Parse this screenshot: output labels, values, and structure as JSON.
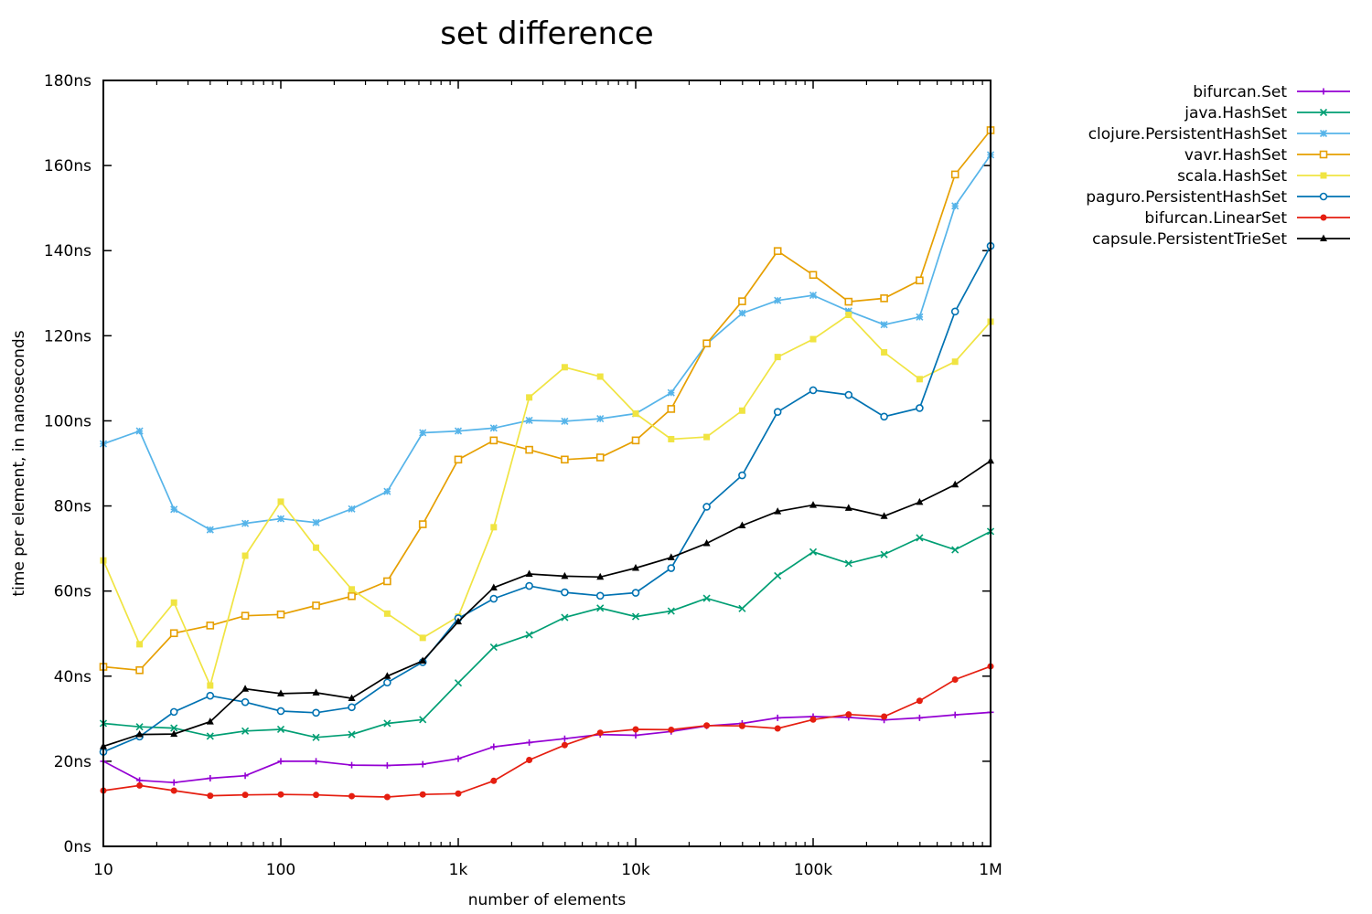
{
  "chart_data": {
    "type": "line",
    "title": "set difference",
    "xlabel": "number of elements",
    "ylabel": "time per element, in nanoseconds",
    "xscale": "log",
    "xlim": [
      10,
      1000000
    ],
    "ylim": [
      0,
      180
    ],
    "x_ticks": [
      {
        "value": 10,
        "label": "10"
      },
      {
        "value": 100,
        "label": "100"
      },
      {
        "value": 1000,
        "label": "1k"
      },
      {
        "value": 10000,
        "label": "10k"
      },
      {
        "value": 100000,
        "label": "100k"
      },
      {
        "value": 1000000,
        "label": "1M"
      }
    ],
    "y_ticks": [
      {
        "value": 0,
        "label": "0ns"
      },
      {
        "value": 20,
        "label": "20ns"
      },
      {
        "value": 40,
        "label": "40ns"
      },
      {
        "value": 60,
        "label": "60ns"
      },
      {
        "value": 80,
        "label": "80ns"
      },
      {
        "value": 100,
        "label": "100ns"
      },
      {
        "value": 120,
        "label": "120ns"
      },
      {
        "value": 140,
        "label": "140ns"
      },
      {
        "value": 160,
        "label": "160ns"
      },
      {
        "value": 180,
        "label": "180ns"
      }
    ],
    "legend_position": "top-right, outside plot",
    "x": [
      10,
      16,
      25,
      40,
      63,
      100,
      158,
      251,
      398,
      631,
      1000,
      1585,
      2512,
      3981,
      6310,
      10000,
      15849,
      25119,
      39811,
      63096,
      100000,
      158489,
      251189,
      398107,
      630957,
      1000000
    ],
    "series": [
      {
        "name": "bifurcan.Set",
        "color": "#9400d3",
        "marker": "plus",
        "values": [
          20.0,
          15.5,
          15.0,
          16.0,
          16.6,
          20.0,
          20.0,
          19.1,
          19.0,
          19.3,
          20.6,
          23.4,
          24.4,
          25.3,
          26.3,
          26.1,
          27.0,
          28.3,
          28.9,
          30.2,
          30.5,
          30.3,
          29.7,
          30.2,
          30.9,
          31.5
        ]
      },
      {
        "name": "java.HashSet",
        "color": "#009e73",
        "marker": "x",
        "values": [
          28.9,
          28.1,
          27.8,
          25.9,
          27.1,
          27.5,
          25.6,
          26.3,
          28.9,
          29.8,
          38.4,
          46.8,
          49.7,
          53.8,
          56.0,
          54.0,
          55.3,
          58.3,
          55.9,
          63.6,
          69.2,
          66.5,
          68.6,
          72.5,
          69.7,
          74.0
        ]
      },
      {
        "name": "clojure.PersistentHashSet",
        "color": "#56b4e9",
        "marker": "star",
        "values": [
          94.6,
          97.6,
          79.2,
          74.4,
          75.9,
          77.0,
          76.1,
          79.3,
          83.4,
          97.2,
          97.6,
          98.3,
          100.1,
          99.9,
          100.5,
          101.7,
          106.6,
          118.1,
          125.3,
          128.3,
          129.5,
          125.8,
          122.6,
          124.4,
          150.5,
          162.5
        ]
      },
      {
        "name": "vavr.HashSet",
        "color": "#e69f00",
        "marker": "square",
        "values": [
          42.2,
          41.4,
          50.1,
          51.9,
          54.2,
          54.5,
          56.6,
          58.8,
          62.3,
          75.7,
          90.9,
          95.4,
          93.2,
          90.9,
          91.4,
          95.4,
          102.8,
          118.2,
          128.1,
          139.9,
          134.3,
          128.0,
          128.8,
          133.0,
          157.9,
          168.3
        ]
      },
      {
        "name": "scala.HashSet",
        "color": "#f0e442",
        "marker": "filled-square",
        "values": [
          67.2,
          47.5,
          57.3,
          37.8,
          68.3,
          81.0,
          70.2,
          60.4,
          54.7,
          49.0,
          54.0,
          75.0,
          105.5,
          112.6,
          110.4,
          101.7,
          95.7,
          96.2,
          102.4,
          115.0,
          119.2,
          124.9,
          116.1,
          109.8,
          113.9,
          123.3
        ]
      },
      {
        "name": "paguro.PersistentHashSet",
        "color": "#0072b2",
        "marker": "circle",
        "values": [
          22.2,
          25.8,
          31.6,
          35.4,
          33.9,
          31.8,
          31.4,
          32.7,
          38.5,
          43.3,
          53.6,
          58.2,
          61.2,
          59.7,
          58.9,
          59.6,
          65.4,
          79.8,
          87.2,
          102.1,
          107.2,
          106.1,
          101.0,
          103.0,
          125.7,
          141.1
        ]
      },
      {
        "name": "bifurcan.LinearSet",
        "color": "#e51e10",
        "marker": "filled-circle",
        "values": [
          13.1,
          14.3,
          13.1,
          11.9,
          12.1,
          12.2,
          12.1,
          11.8,
          11.6,
          12.2,
          12.4,
          15.4,
          20.3,
          23.8,
          26.7,
          27.5,
          27.4,
          28.4,
          28.3,
          27.7,
          29.8,
          31.0,
          30.5,
          34.2,
          39.2,
          42.3
        ]
      },
      {
        "name": "capsule.PersistentTrieSet",
        "color": "#000000",
        "marker": "filled-triangle",
        "values": [
          23.5,
          26.3,
          26.4,
          29.3,
          37.0,
          35.9,
          36.1,
          34.8,
          40.0,
          43.6,
          52.8,
          60.8,
          64.0,
          63.5,
          63.3,
          65.4,
          67.9,
          71.2,
          75.4,
          78.7,
          80.2,
          79.5,
          77.6,
          80.9,
          85.0,
          90.6
        ]
      }
    ]
  }
}
